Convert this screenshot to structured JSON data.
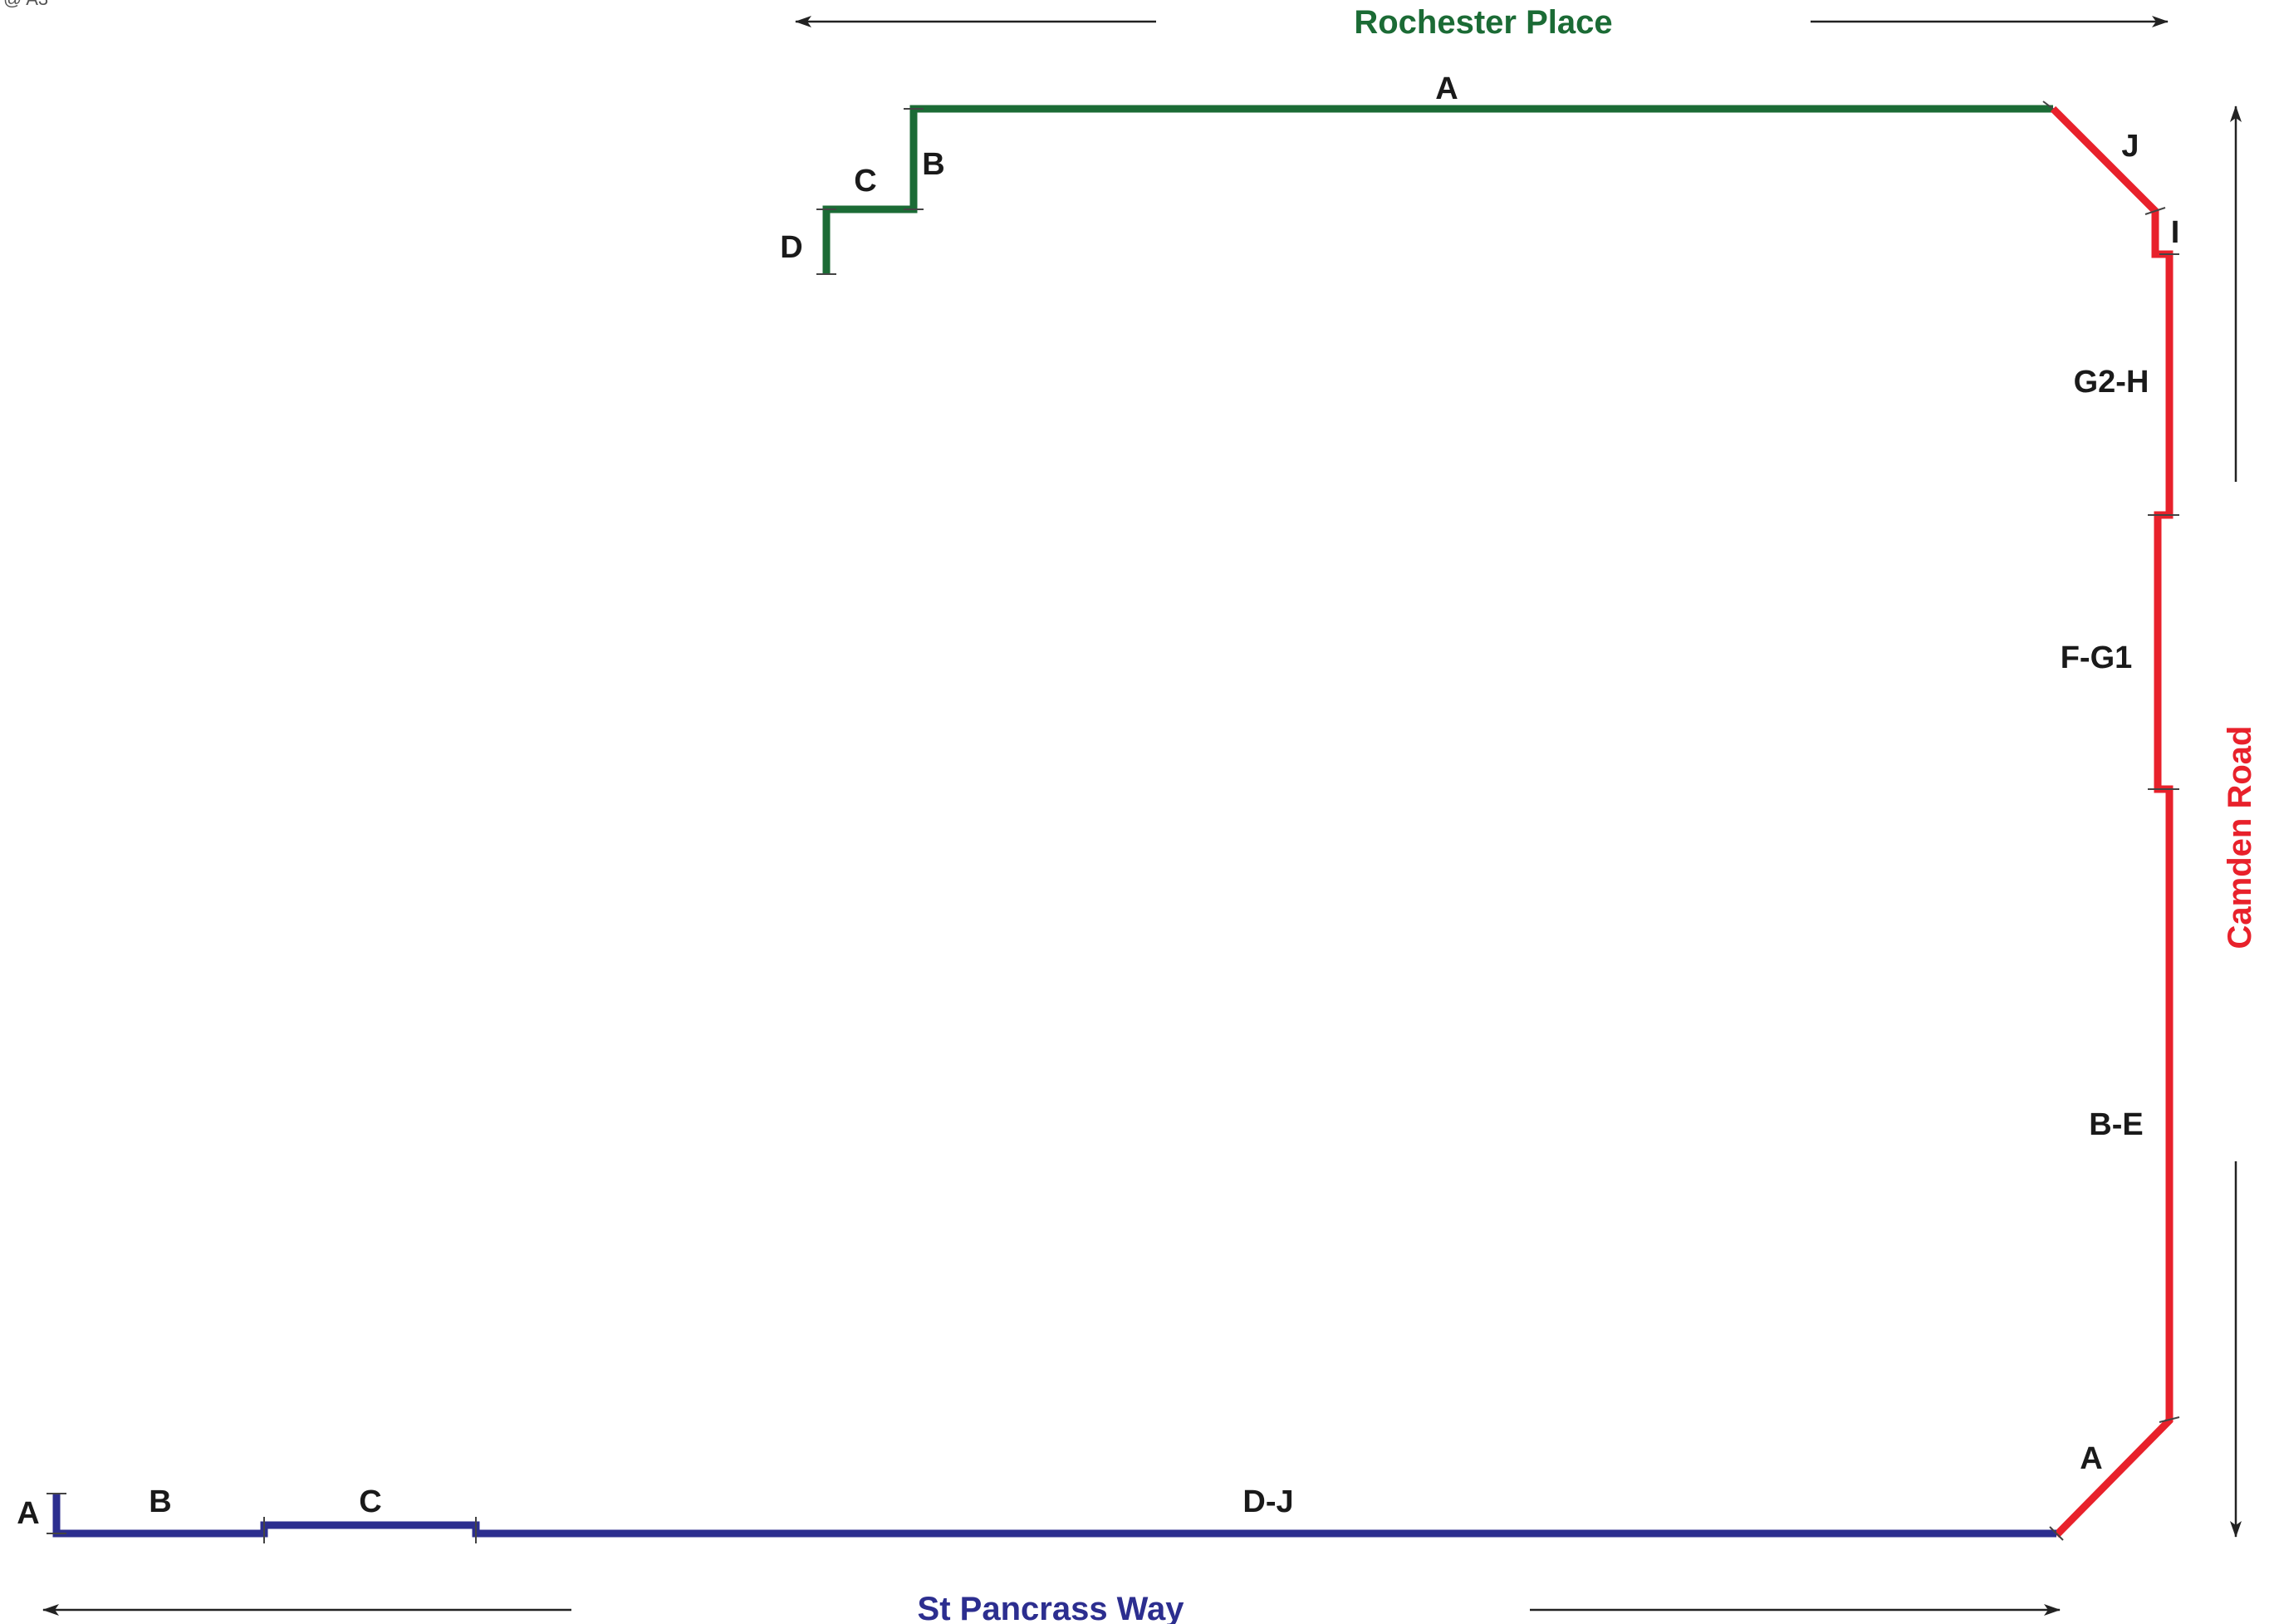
{
  "scale_note": "@ A3",
  "colors": {
    "rochester": "#1b6b35",
    "camden": "#e8212b",
    "pancras": "#2c2e8f",
    "arrow": "#222222",
    "label": "#1a1a1a"
  },
  "streets": {
    "rochester": "Rochester Place",
    "camden": "Camden Road",
    "pancras": "St Pancrass Way"
  },
  "rochester_labels": {
    "A": "A",
    "B": "B",
    "C": "C",
    "D": "D"
  },
  "camden_labels": {
    "J": "J",
    "I": "I",
    "G2H": "G2-H",
    "FG1": "F-G1",
    "BE": "B-E",
    "A": "A"
  },
  "pancras_labels": {
    "A": "A",
    "B": "B",
    "C": "C",
    "DJ": "D-J"
  }
}
